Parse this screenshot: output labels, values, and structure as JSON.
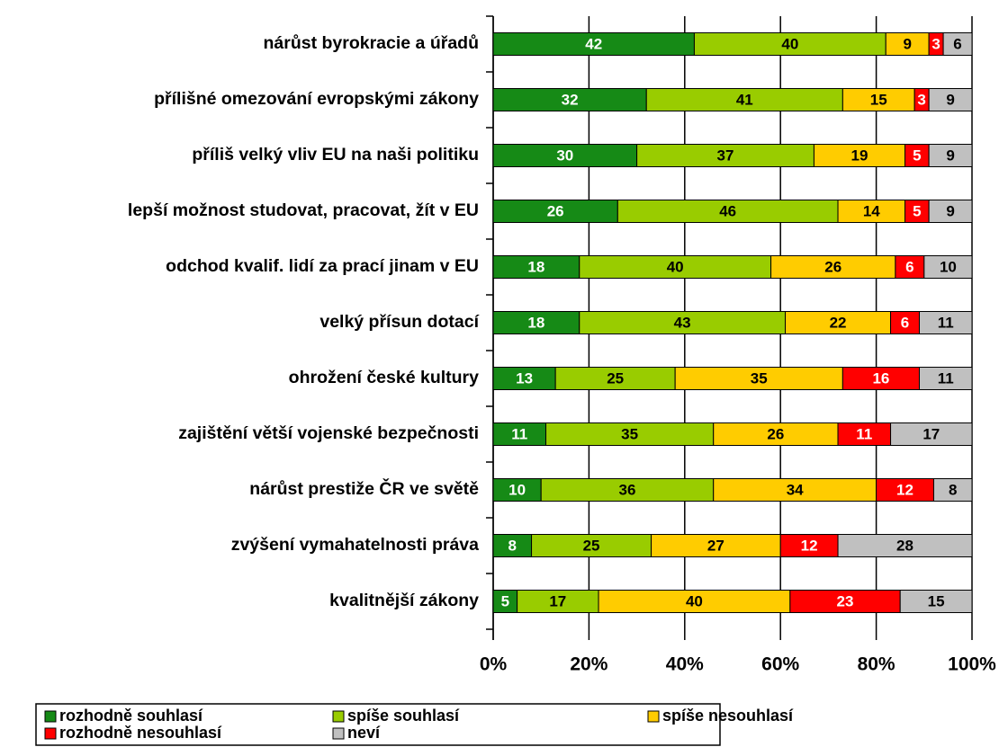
{
  "chart_data": {
    "type": "stacked-bar-horizontal",
    "categories": [
      "nárůst byrokracie a úřadů",
      "přílišné omezování evropskými zákony",
      "příliš velký vliv EU na naši politiku",
      "lepší možnost studovat, pracovat, žít v EU",
      "odchod kvalif. lidí za prací jinam v EU",
      "velký přísun dotací",
      "ohrožení české kultury",
      "zajištění větší vojenské bezpečnosti",
      "nárůst prestiže ČR ve světě",
      "zvýšení vymahatelnosti práva",
      "kvalitnější zákony"
    ],
    "series": [
      {
        "name": "rozhodně souhlasí",
        "color": "#168a16",
        "values": [
          42,
          32,
          30,
          26,
          18,
          18,
          13,
          11,
          10,
          8,
          5
        ]
      },
      {
        "name": "spíše souhlasí",
        "color": "#99cc00",
        "values": [
          40,
          41,
          37,
          46,
          40,
          43,
          25,
          35,
          36,
          25,
          17
        ]
      },
      {
        "name": "spíše nesouhlasí",
        "color": "#ffcc00",
        "values": [
          9,
          15,
          19,
          14,
          26,
          22,
          35,
          26,
          34,
          27,
          40
        ]
      },
      {
        "name": "rozhodně nesouhlasí",
        "color": "#ff0000",
        "values": [
          3,
          3,
          5,
          5,
          6,
          6,
          16,
          11,
          12,
          12,
          23
        ]
      },
      {
        "name": "neví",
        "color": "#c0c0c0",
        "values": [
          6,
          9,
          9,
          9,
          10,
          11,
          11,
          17,
          8,
          28,
          15
        ]
      }
    ],
    "xlim": [
      0,
      100
    ],
    "xticks": [
      {
        "value": 0,
        "label": "0%"
      },
      {
        "value": 20,
        "label": "20%"
      },
      {
        "value": 40,
        "label": "40%"
      },
      {
        "value": 60,
        "label": "60%"
      },
      {
        "value": 80,
        "label": "80%"
      },
      {
        "value": 100,
        "label": "100%"
      }
    ],
    "grid": true
  }
}
